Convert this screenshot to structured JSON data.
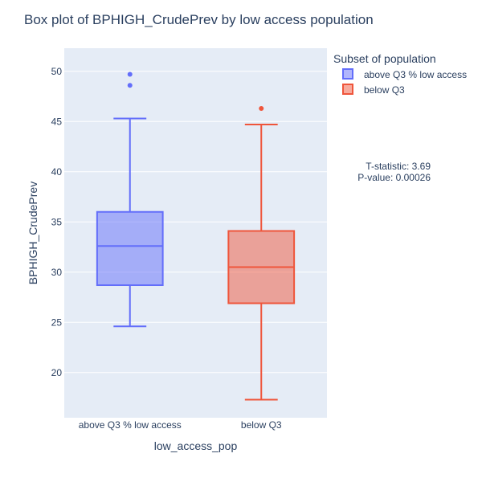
{
  "chart_data": {
    "type": "box",
    "title": "Box plot of BPHIGH_CrudePrev by low access population",
    "xlabel": "low_access_pop",
    "ylabel": "BPHIGH_CrudePrev",
    "ylim": [
      15.5,
      52.3
    ],
    "yticks": [
      20,
      25,
      30,
      35,
      40,
      45,
      50
    ],
    "categories": [
      "above Q3 % low access",
      "below Q3"
    ],
    "grid": true,
    "legend": {
      "title": "Subset of population",
      "placement": "top-right",
      "items": [
        "above Q3 % low access",
        "below Q3"
      ]
    },
    "series": [
      {
        "name": "above Q3 % low access",
        "color": "#636efa",
        "min": 24.6,
        "q1": 28.7,
        "median": 32.6,
        "q3": 36.0,
        "max": 45.3,
        "outliers": [
          48.6,
          49.7
        ]
      },
      {
        "name": "below Q3",
        "color": "#ef553b",
        "min": 17.3,
        "q1": 26.9,
        "median": 30.5,
        "q3": 34.1,
        "max": 44.7,
        "outliers": [
          46.3
        ]
      }
    ],
    "annotations": [
      "T-statistic: 3.69",
      "P-value: 0.00026"
    ]
  }
}
